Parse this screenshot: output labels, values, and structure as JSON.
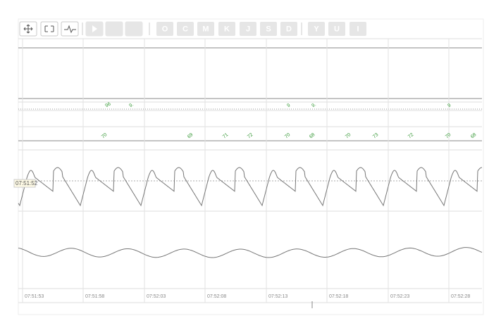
{
  "toolbar": {
    "letter_buttons": [
      "O",
      "C",
      "M",
      "K",
      "J",
      "S",
      "D",
      "Y",
      "U",
      "I"
    ]
  },
  "cursor_label": "07:51:52",
  "upper_annotations": [
    "96",
    "9.",
    "9",
    "9.",
    "9"
  ],
  "rate_annotations": [
    "70",
    "69",
    "71",
    "72",
    "70",
    "68",
    "70",
    "73",
    "72",
    "70",
    "68"
  ],
  "time_labels": [
    "07:51:53",
    "07:51:58",
    "07:52:03",
    "07:52:08",
    "07:52:13",
    "07:52:18",
    "07:52:23",
    "07:52:28"
  ]
}
